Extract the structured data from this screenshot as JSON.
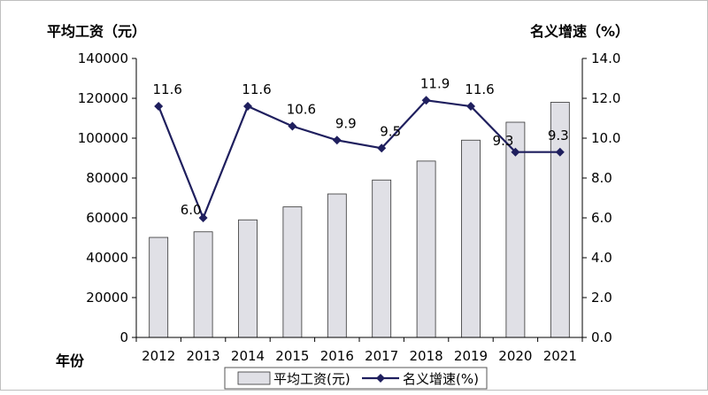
{
  "chart_data": {
    "type": "bar",
    "categories": [
      "2012",
      "2013",
      "2014",
      "2015",
      "2016",
      "2017",
      "2018",
      "2019",
      "2020",
      "2021"
    ],
    "xlabel": "年份",
    "ylabel_left": "平均工资（元）",
    "ylabel_right": "名义增速（%）",
    "ylim_left": [
      0,
      140000
    ],
    "ylim_right": [
      0,
      14
    ],
    "yticks_left": [
      "0",
      "20000",
      "40000",
      "60000",
      "80000",
      "100000",
      "120000",
      "140000"
    ],
    "yticks_right": [
      "0.0",
      "2.0",
      "4.0",
      "6.0",
      "8.0",
      "10.0",
      "12.0",
      "14.0"
    ],
    "series": [
      {
        "name": "平均工资(元)",
        "type": "bar",
        "axis": "left",
        "values": [
          50200,
          53000,
          59000,
          65500,
          72000,
          79000,
          88500,
          99000,
          108000,
          118000
        ],
        "color": "#e0e0e6"
      },
      {
        "name": "名义增速(%)",
        "type": "line",
        "axis": "right",
        "values": [
          11.6,
          6.0,
          11.6,
          10.6,
          9.9,
          9.5,
          11.9,
          11.6,
          9.3,
          9.3
        ],
        "labels": [
          "11.6",
          "6.0",
          "11.6",
          "10.6",
          "9.9",
          "9.5",
          "11.9",
          "11.6",
          "9.3",
          "9.3"
        ],
        "color": "#1f1f5e"
      }
    ],
    "legend": "bottom",
    "grid": false
  }
}
